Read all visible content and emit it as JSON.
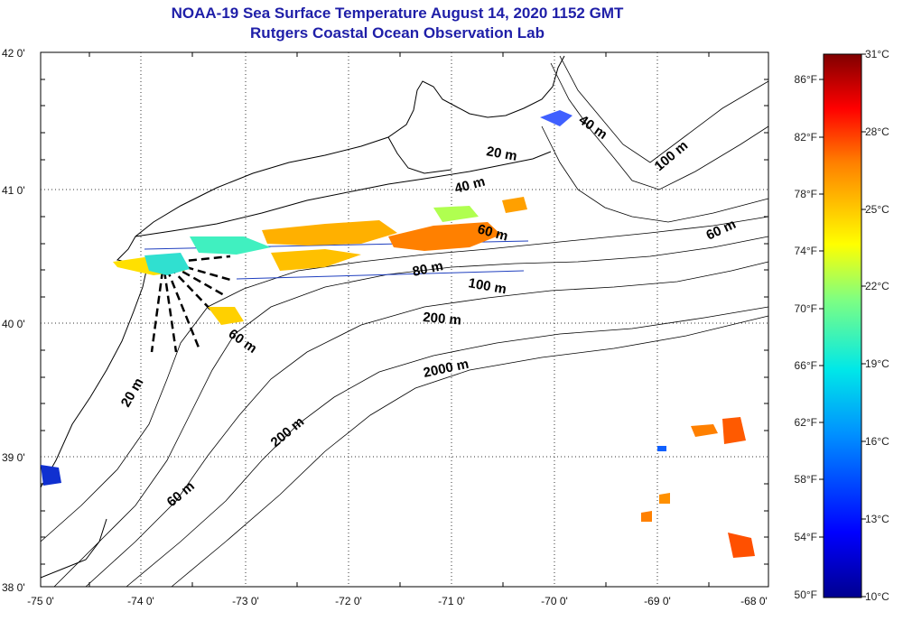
{
  "title": "NOAA-19 Sea Surface Temperature August 14, 2020 1152 GMT",
  "subtitle": "Rutgers Coastal Ocean Observation Lab",
  "lat_labels": [
    "42 0'",
    "41 0'",
    "40 0'",
    "39 0'",
    "38 0'"
  ],
  "lon_labels": [
    "-75 0'",
    "-74 0'",
    "-73 0'",
    "-72 0'",
    "-71 0'",
    "-70 0'",
    "-69 0'",
    "-68 0'"
  ],
  "contour_labels": [
    "40 m",
    "100 m",
    "20 m",
    "40 m",
    "60 m",
    "60 m",
    "80 m",
    "100 m",
    "200 m",
    "2000 m",
    "60 m",
    "20 m",
    "200 m",
    "60 m"
  ],
  "colorbar": {
    "fahrenheit": [
      "86°F",
      "82°F",
      "78°F",
      "74°F",
      "70°F",
      "66°F",
      "62°F",
      "58°F",
      "54°F",
      "50°F"
    ],
    "celsius": [
      "31°C",
      "28°C",
      "25°C",
      "22°C",
      "19°C",
      "16°C",
      "13°C",
      "10°C"
    ],
    "range_c": [
      10,
      31
    ]
  },
  "colors": {
    "title": "#1f1fa8",
    "land_line": "#000000",
    "transect_line": "#1f3fbf"
  }
}
